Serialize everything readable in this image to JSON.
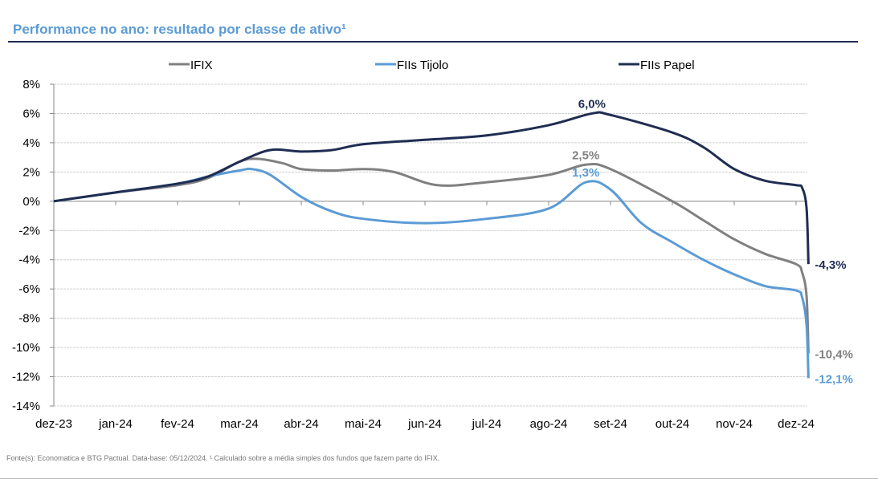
{
  "title": "Performance no ano: resultado por classe de ativo¹",
  "footer": "Fonte(s): Economatica e BTG Pactual. Data-base: 05/12/2024. ¹ Calculado sobre a média simples dos fundos que fazem parte do IFIX.",
  "chart_data": {
    "type": "line",
    "title": "Performance no ano: resultado por classe de ativo¹",
    "xlabel": "",
    "ylabel": "",
    "categories": [
      "dez-23",
      "jan-24",
      "fev-24",
      "mar-24",
      "abr-24",
      "mai-24",
      "jun-24",
      "jul-24",
      "ago-24",
      "set-24",
      "out-24",
      "nov-24",
      "dez-24"
    ],
    "yticks": [
      "8%",
      "6%",
      "4%",
      "2%",
      "0%",
      "-2%",
      "-4%",
      "-6%",
      "-8%",
      "-10%",
      "-12%",
      "-14%"
    ],
    "ylim": [
      -14,
      8
    ],
    "legend_position": "top",
    "series": [
      {
        "name": "IFIX",
        "color": "#808080",
        "points": [
          [
            0,
            0
          ],
          [
            1,
            0.6
          ],
          [
            2,
            1.1
          ],
          [
            2.5,
            1.6
          ],
          [
            3,
            2.7
          ],
          [
            3.3,
            2.9
          ],
          [
            3.7,
            2.6
          ],
          [
            4,
            2.2
          ],
          [
            4.5,
            2.1
          ],
          [
            5,
            2.2
          ],
          [
            5.5,
            2.0
          ],
          [
            6.2,
            1.1
          ],
          [
            7,
            1.3
          ],
          [
            8,
            1.8
          ],
          [
            8.6,
            2.5
          ],
          [
            9,
            2.2
          ],
          [
            10,
            0.0
          ],
          [
            10.5,
            -1.3
          ],
          [
            11,
            -2.6
          ],
          [
            11.5,
            -3.6
          ],
          [
            12,
            -4.3
          ],
          [
            12.1,
            -4.9
          ],
          [
            12.17,
            -6.5
          ],
          [
            12.2,
            -10.4
          ]
        ],
        "labels": [
          {
            "text": "2,5%",
            "at": [
              8.6,
              2.5
            ]
          },
          {
            "text": "-10,4%",
            "at": [
              12.2,
              -10.4
            ]
          }
        ]
      },
      {
        "name": "FIIs Tijolo",
        "color": "#5b9bd5",
        "points": [
          [
            0,
            0
          ],
          [
            1,
            0.6
          ],
          [
            2,
            1.2
          ],
          [
            2.5,
            1.7
          ],
          [
            3,
            2.1
          ],
          [
            3.2,
            2.2
          ],
          [
            3.5,
            1.8
          ],
          [
            4,
            0.3
          ],
          [
            4.5,
            -0.7
          ],
          [
            5,
            -1.2
          ],
          [
            6,
            -1.5
          ],
          [
            7,
            -1.2
          ],
          [
            8,
            -0.5
          ],
          [
            8.6,
            1.3
          ],
          [
            9,
            0.8
          ],
          [
            9.5,
            -1.5
          ],
          [
            10,
            -2.8
          ],
          [
            10.5,
            -4.0
          ],
          [
            11,
            -5.0
          ],
          [
            11.5,
            -5.8
          ],
          [
            12,
            -6.1
          ],
          [
            12.1,
            -6.6
          ],
          [
            12.17,
            -8.5
          ],
          [
            12.2,
            -12.1
          ]
        ],
        "labels": [
          {
            "text": "1,3%",
            "at": [
              8.6,
              1.3
            ]
          },
          {
            "text": "-12,1%",
            "at": [
              12.2,
              -12.1
            ]
          }
        ]
      },
      {
        "name": "FIIs Papel",
        "color": "#1f2d52",
        "points": [
          [
            0,
            0
          ],
          [
            1,
            0.6
          ],
          [
            2,
            1.2
          ],
          [
            2.5,
            1.7
          ],
          [
            3,
            2.7
          ],
          [
            3.5,
            3.5
          ],
          [
            4,
            3.4
          ],
          [
            4.5,
            3.5
          ],
          [
            5,
            3.9
          ],
          [
            6,
            4.2
          ],
          [
            7,
            4.5
          ],
          [
            8,
            5.2
          ],
          [
            8.7,
            6.0
          ],
          [
            9,
            5.9
          ],
          [
            10,
            4.7
          ],
          [
            10.5,
            3.7
          ],
          [
            11,
            2.2
          ],
          [
            11.5,
            1.4
          ],
          [
            12,
            1.1
          ],
          [
            12.1,
            0.9
          ],
          [
            12.17,
            -0.5
          ],
          [
            12.2,
            -4.3
          ]
        ],
        "labels": [
          {
            "text": "6,0%",
            "at": [
              8.7,
              6.0
            ]
          },
          {
            "text": "-4,3%",
            "at": [
              12.2,
              -4.3
            ]
          }
        ]
      }
    ]
  }
}
